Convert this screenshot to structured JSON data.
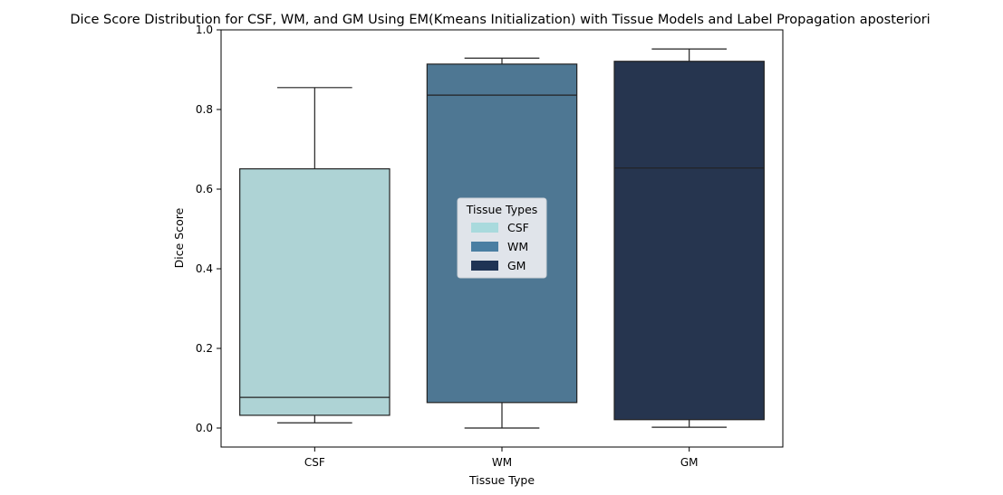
{
  "chart_data": {
    "type": "box",
    "title": "Dice Score Distribution for CSF, WM, and GM Using EM(Kmeans Initialization) with Tissue Models and Label Propagation aposteriori",
    "xlabel": "Tissue Type",
    "ylabel": "Dice Score",
    "ylim": [
      -0.05,
      1.0
    ],
    "yticks": [
      0.0,
      0.2,
      0.4,
      0.6,
      0.8,
      1.0
    ],
    "ytick_labels": [
      "0.0",
      "0.2",
      "0.4",
      "0.6",
      "0.8",
      "1.0"
    ],
    "grid": false,
    "categories": [
      "CSF",
      "WM",
      "GM"
    ],
    "boxes": [
      {
        "category": "CSF",
        "whisker_low": 0.013,
        "q1": 0.032,
        "median": 0.077,
        "q3": 0.651,
        "whisker_high": 0.855,
        "color": "#aed3d5"
      },
      {
        "category": "WM",
        "whisker_low": 0.0,
        "q1": 0.064,
        "median": 0.836,
        "q3": 0.914,
        "whisker_high": 0.929,
        "color": "#4e7793"
      },
      {
        "category": "GM",
        "whisker_low": 0.002,
        "q1": 0.021,
        "median": 0.653,
        "q3": 0.921,
        "whisker_high": 0.952,
        "color": "#26354f"
      }
    ],
    "legend": {
      "title": "Tissue Types",
      "placement": "center",
      "entries": [
        {
          "label": "CSF",
          "color": "#a9dadd"
        },
        {
          "label": "WM",
          "color": "#4a7ea2"
        },
        {
          "label": "GM",
          "color": "#1f3354"
        }
      ]
    }
  }
}
